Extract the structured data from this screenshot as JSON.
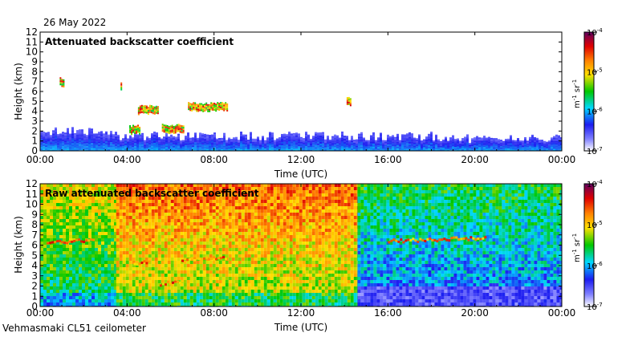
{
  "date": "26 May 2022",
  "footer": "Vehmasmaki CL51 ceilometer",
  "colorbar": {
    "unit_main": "m",
    "unit_exp1": "-1",
    "unit_mid": " sr",
    "unit_exp2": "-1",
    "ticks": [
      {
        "base": "10",
        "exp": "-4",
        "value": 0.0001
      },
      {
        "base": "10",
        "exp": "-5",
        "value": 1e-05
      },
      {
        "base": "10",
        "exp": "-6",
        "value": 1e-06
      },
      {
        "base": "10",
        "exp": "-7",
        "value": 1e-07
      }
    ],
    "colors": [
      "#ffffff",
      "#1c1cf0",
      "#00d8ff",
      "#00c800",
      "#ffe000",
      "#ff8000",
      "#e00000",
      "#600060"
    ],
    "scale": "log"
  },
  "chart_data": [
    {
      "type": "heatmap",
      "title": "Attenuated backscatter coefficient",
      "xlabel": "Time (UTC)",
      "ylabel": "Height (km)",
      "xlim": [
        "00:00",
        "24:00"
      ],
      "ylim": [
        0,
        12
      ],
      "x_ticks": [
        "00:00",
        "04:00",
        "08:00",
        "12:00",
        "16:00",
        "20:00",
        "00:00"
      ],
      "y_ticks": [
        0,
        1,
        2,
        3,
        4,
        5,
        6,
        7,
        8,
        9,
        10,
        11,
        12
      ],
      "features": [
        {
          "kind": "boundary_layer",
          "time_start": 0,
          "time_end": 24,
          "top_km": 1.5
        },
        {
          "kind": "cloud_layer",
          "time_start": 0.9,
          "time_end": 1.1,
          "height_km": 7.0
        },
        {
          "kind": "cloud_layer",
          "time_start": 3.7,
          "time_end": 3.75,
          "height_km": 6.7
        },
        {
          "kind": "cloud_layer",
          "time_start": 4.1,
          "time_end": 4.6,
          "height_km": 2.2
        },
        {
          "kind": "cloud_layer",
          "time_start": 4.5,
          "time_end": 5.4,
          "height_km": 4.2
        },
        {
          "kind": "cloud_layer",
          "time_start": 5.6,
          "time_end": 6.6,
          "height_km": 2.3
        },
        {
          "kind": "cloud_layer",
          "time_start": 6.8,
          "time_end": 8.6,
          "height_km": 4.5
        },
        {
          "kind": "cloud_layer",
          "time_start": 14.1,
          "time_end": 14.3,
          "height_km": 5.1
        }
      ]
    },
    {
      "type": "heatmap",
      "title": "Raw attenuated backscatter coefficient",
      "xlabel": "Time (UTC)",
      "ylabel": "Height (km)",
      "xlim": [
        "00:00",
        "24:00"
      ],
      "ylim": [
        0,
        12
      ],
      "x_ticks": [
        "00:00",
        "04:00",
        "08:00",
        "12:00",
        "16:00",
        "20:00",
        "00:00"
      ],
      "y_ticks": [
        0,
        1,
        2,
        3,
        4,
        5,
        6,
        7,
        8,
        9,
        10,
        11,
        12
      ],
      "features": [
        {
          "kind": "noisy_background",
          "time_start": 0,
          "time_end": 3.5,
          "level": "medium"
        },
        {
          "kind": "noisy_background",
          "time_start": 3.5,
          "time_end": 14.6,
          "level": "high"
        },
        {
          "kind": "noisy_background",
          "time_start": 14.6,
          "time_end": 24,
          "level": "low"
        },
        {
          "kind": "aerosol_layer",
          "time_start": 0.3,
          "time_end": 2.5,
          "height_km": 6.3
        },
        {
          "kind": "aerosol_layer",
          "time_start": 4.3,
          "time_end": 5.0,
          "height_km": 4.2
        },
        {
          "kind": "aerosol_layer",
          "time_start": 6.5,
          "time_end": 8.5,
          "height_km": 4.6
        },
        {
          "kind": "aerosol_layer",
          "time_start": 5.5,
          "time_end": 6.5,
          "height_km": 2.3
        },
        {
          "kind": "aerosol_layer",
          "time_start": 16.0,
          "time_end": 20.5,
          "height_km": 6.5
        }
      ]
    }
  ]
}
